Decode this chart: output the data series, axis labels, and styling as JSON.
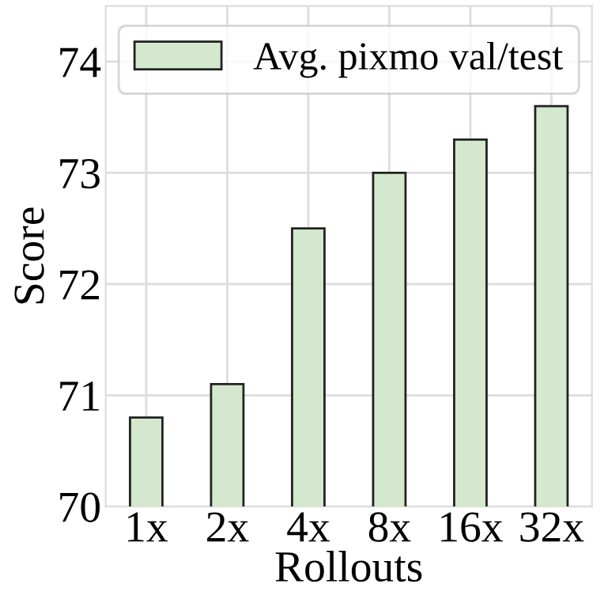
{
  "chart_data": {
    "type": "bar",
    "xlabel": "Rollouts",
    "ylabel": "Score",
    "categories": [
      "1x",
      "2x",
      "4x",
      "8x",
      "16x",
      "32x"
    ],
    "series": [
      {
        "name": "Avg. pixmo val/test",
        "color": "#d3e8cc",
        "values": [
          70.8,
          71.1,
          72.5,
          73.0,
          73.3,
          73.6
        ]
      }
    ],
    "ylim": [
      70,
      74.5
    ],
    "yticks": [
      70,
      71,
      72,
      73,
      74
    ],
    "grid": true,
    "legend": "top"
  }
}
